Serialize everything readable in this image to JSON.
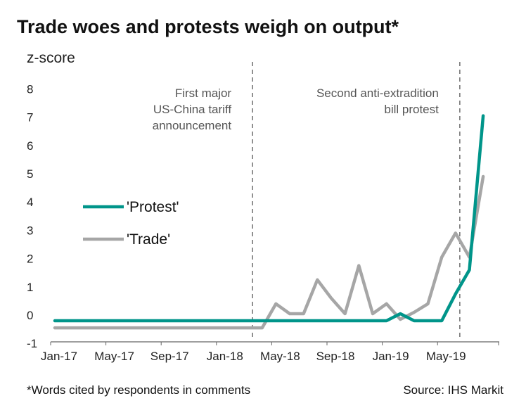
{
  "chart_data": {
    "type": "line",
    "title": "Trade woes and protests weigh on output*",
    "ylabel": "z-score",
    "xlabel": "",
    "ylim": [
      -1,
      8
    ],
    "yticks": [
      -1,
      0,
      1,
      2,
      3,
      4,
      5,
      6,
      7,
      8
    ],
    "x": [
      "Jan-17",
      "Feb-17",
      "Mar-17",
      "Apr-17",
      "May-17",
      "Jun-17",
      "Jul-17",
      "Aug-17",
      "Sep-17",
      "Oct-17",
      "Nov-17",
      "Dec-17",
      "Jan-18",
      "Feb-18",
      "Mar-18",
      "Apr-18",
      "May-18",
      "Jun-18",
      "Jul-18",
      "Aug-18",
      "Sep-18",
      "Oct-18",
      "Nov-18",
      "Dec-18",
      "Jan-19",
      "Feb-19",
      "Mar-19",
      "Apr-19",
      "May-19",
      "Jun-19",
      "Jul-19",
      "Aug-19"
    ],
    "xtick_labels": [
      "Jan-17",
      "May-17",
      "Sep-17",
      "Jan-18",
      "May-18",
      "Sep-18",
      "Jan-19",
      "May-19"
    ],
    "series": [
      {
        "name": "'Protest'",
        "color": "#00958a",
        "values": [
          -0.2,
          -0.2,
          -0.2,
          -0.2,
          -0.2,
          -0.2,
          -0.2,
          -0.2,
          -0.2,
          -0.2,
          -0.2,
          -0.2,
          -0.2,
          -0.2,
          -0.2,
          -0.2,
          -0.2,
          -0.2,
          -0.2,
          -0.2,
          -0.2,
          -0.2,
          -0.2,
          -0.2,
          -0.2,
          0.05,
          -0.2,
          -0.2,
          -0.2,
          0.75,
          1.6,
          7.05
        ]
      },
      {
        "name": "'Trade'",
        "color": "#a6a6a6",
        "values": [
          -0.45,
          -0.45,
          -0.45,
          -0.45,
          -0.45,
          -0.45,
          -0.45,
          -0.45,
          -0.45,
          -0.45,
          -0.45,
          -0.45,
          -0.45,
          -0.45,
          -0.45,
          -0.45,
          0.4,
          0.05,
          0.05,
          1.25,
          0.6,
          0.05,
          1.75,
          0.05,
          0.4,
          -0.15,
          0.1,
          0.4,
          2.05,
          2.9,
          2.05,
          4.9
        ]
      }
    ],
    "vlines": [
      {
        "x": "Mar-18",
        "label_lines": [
          "First major",
          "US-China tariff",
          "announcement"
        ]
      },
      {
        "x": "Jun-19",
        "label_lines": [
          "Second anti-extradition",
          "bill protest"
        ]
      }
    ],
    "legend_position": "left-middle",
    "grid": false
  },
  "footnote": "*Words cited by respondents in comments",
  "source": "Source:  IHS Markit"
}
